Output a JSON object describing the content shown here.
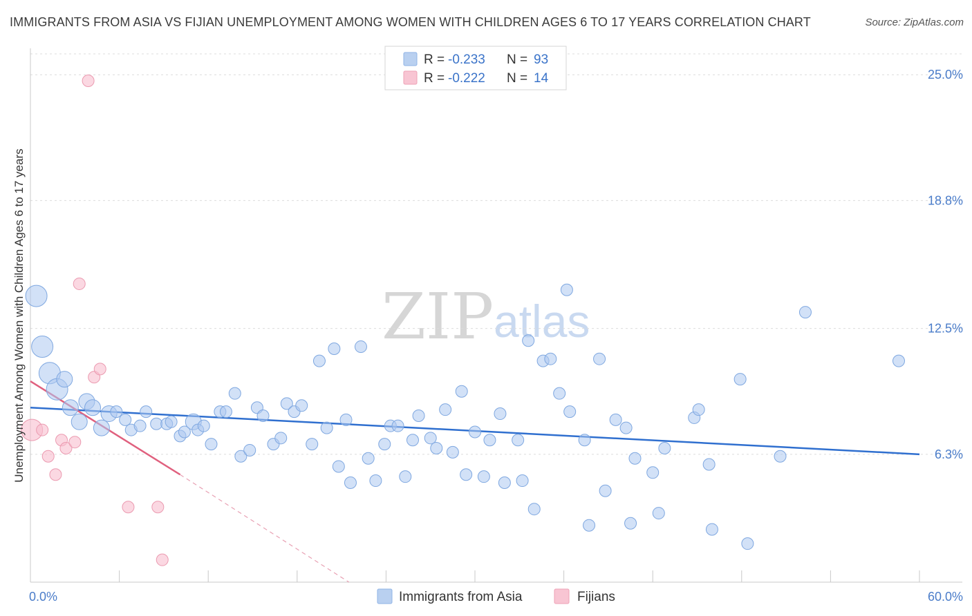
{
  "title": "IMMIGRANTS FROM ASIA VS FIJIAN UNEMPLOYMENT AMONG WOMEN WITH CHILDREN AGES 6 TO 17 YEARS CORRELATION CHART",
  "source": "Source: ZipAtlas.com",
  "watermark": {
    "zip": "ZIP",
    "atlas": "atlas"
  },
  "colors": {
    "blue": "#4a86d8",
    "blue_fill": "#b9d0f0",
    "pink": "#e0607e",
    "pink_fill": "#f8c5d3",
    "axis_text": "#4a7cc9"
  },
  "legend": {
    "rows": [
      {
        "r_label": "R =",
        "r_value": "-0.233",
        "n_label": "N =",
        "n_value": "93"
      },
      {
        "r_label": "R =",
        "r_value": "-0.222",
        "n_label": "N =",
        "n_value": "14"
      }
    ]
  },
  "chart_data": {
    "type": "scatter",
    "title": "IMMIGRANTS FROM ASIA VS FIJIAN UNEMPLOYMENT AMONG WOMEN WITH CHILDREN AGES 6 TO 17 YEARS CORRELATION CHART",
    "xlabel": "",
    "ylabel": "Unemployment Among Women with Children Ages 6 to 17 years",
    "xlim": [
      0,
      60
    ],
    "ylim": [
      0,
      26.3
    ],
    "x_tick_labels": [
      {
        "value": 0,
        "label": "0.0%"
      },
      {
        "value": 60,
        "label": "60.0%"
      }
    ],
    "y_ticks": [
      {
        "value": 6.3,
        "label": "6.3%"
      },
      {
        "value": 12.5,
        "label": "12.5%"
      },
      {
        "value": 18.8,
        "label": "18.8%"
      },
      {
        "value": 25.0,
        "label": "25.0%"
      }
    ],
    "grid": true,
    "legend_position": "top-center",
    "series": [
      {
        "name": "Immigrants from Asia",
        "color": "#4a86d8",
        "r": -0.233,
        "n": 93,
        "trend": {
          "x0": 0,
          "y0": 8.6,
          "x1": 60,
          "y1": 6.3
        },
        "points": [
          {
            "x": 0.4,
            "y": 14.1,
            "s": 3
          },
          {
            "x": 0.8,
            "y": 11.6,
            "s": 3
          },
          {
            "x": 1.3,
            "y": 10.3,
            "s": 3
          },
          {
            "x": 1.8,
            "y": 9.5,
            "s": 3
          },
          {
            "x": 2.3,
            "y": 10.0,
            "s": 2
          },
          {
            "x": 2.7,
            "y": 8.6,
            "s": 2
          },
          {
            "x": 3.3,
            "y": 7.9,
            "s": 2
          },
          {
            "x": 3.8,
            "y": 8.9,
            "s": 2
          },
          {
            "x": 4.2,
            "y": 8.6,
            "s": 2
          },
          {
            "x": 4.8,
            "y": 7.6,
            "s": 2
          },
          {
            "x": 5.3,
            "y": 8.3,
            "s": 2
          },
          {
            "x": 5.8,
            "y": 8.4,
            "s": 1
          },
          {
            "x": 6.4,
            "y": 8.0,
            "s": 1
          },
          {
            "x": 6.8,
            "y": 7.5,
            "s": 1
          },
          {
            "x": 7.4,
            "y": 7.7,
            "s": 1
          },
          {
            "x": 7.8,
            "y": 8.4,
            "s": 1
          },
          {
            "x": 8.5,
            "y": 7.8,
            "s": 1
          },
          {
            "x": 9.2,
            "y": 7.8,
            "s": 1
          },
          {
            "x": 9.5,
            "y": 7.9,
            "s": 1
          },
          {
            "x": 10.1,
            "y": 7.2,
            "s": 1
          },
          {
            "x": 10.4,
            "y": 7.4,
            "s": 1
          },
          {
            "x": 11.0,
            "y": 7.9,
            "s": 2
          },
          {
            "x": 11.3,
            "y": 7.5,
            "s": 1
          },
          {
            "x": 11.7,
            "y": 7.7,
            "s": 1
          },
          {
            "x": 12.2,
            "y": 6.8,
            "s": 1
          },
          {
            "x": 12.8,
            "y": 8.4,
            "s": 1
          },
          {
            "x": 13.2,
            "y": 8.4,
            "s": 1
          },
          {
            "x": 13.8,
            "y": 9.3,
            "s": 1
          },
          {
            "x": 14.2,
            "y": 6.2,
            "s": 1
          },
          {
            "x": 14.8,
            "y": 6.5,
            "s": 1
          },
          {
            "x": 15.3,
            "y": 8.6,
            "s": 1
          },
          {
            "x": 15.7,
            "y": 8.2,
            "s": 1
          },
          {
            "x": 16.4,
            "y": 6.8,
            "s": 1
          },
          {
            "x": 16.9,
            "y": 7.1,
            "s": 1
          },
          {
            "x": 17.3,
            "y": 8.8,
            "s": 1
          },
          {
            "x": 17.8,
            "y": 8.4,
            "s": 1
          },
          {
            "x": 18.3,
            "y": 8.7,
            "s": 1
          },
          {
            "x": 19.0,
            "y": 6.8,
            "s": 1
          },
          {
            "x": 19.5,
            "y": 10.9,
            "s": 1
          },
          {
            "x": 20.0,
            "y": 7.6,
            "s": 1
          },
          {
            "x": 20.5,
            "y": 11.5,
            "s": 1
          },
          {
            "x": 20.8,
            "y": 5.7,
            "s": 1
          },
          {
            "x": 21.3,
            "y": 8.0,
            "s": 1
          },
          {
            "x": 21.6,
            "y": 4.9,
            "s": 1
          },
          {
            "x": 22.3,
            "y": 11.6,
            "s": 1
          },
          {
            "x": 22.8,
            "y": 6.1,
            "s": 1
          },
          {
            "x": 23.3,
            "y": 5.0,
            "s": 1
          },
          {
            "x": 23.9,
            "y": 6.8,
            "s": 1
          },
          {
            "x": 24.3,
            "y": 7.7,
            "s": 1
          },
          {
            "x": 24.8,
            "y": 7.7,
            "s": 1
          },
          {
            "x": 25.3,
            "y": 5.2,
            "s": 1
          },
          {
            "x": 25.8,
            "y": 7.0,
            "s": 1
          },
          {
            "x": 26.2,
            "y": 8.2,
            "s": 1
          },
          {
            "x": 27.0,
            "y": 7.1,
            "s": 1
          },
          {
            "x": 27.4,
            "y": 6.6,
            "s": 1
          },
          {
            "x": 28.0,
            "y": 8.5,
            "s": 1
          },
          {
            "x": 28.5,
            "y": 6.4,
            "s": 1
          },
          {
            "x": 29.1,
            "y": 9.4,
            "s": 1
          },
          {
            "x": 29.4,
            "y": 5.3,
            "s": 1
          },
          {
            "x": 30.0,
            "y": 7.4,
            "s": 1
          },
          {
            "x": 30.6,
            "y": 5.2,
            "s": 1
          },
          {
            "x": 31.0,
            "y": 7.0,
            "s": 1
          },
          {
            "x": 31.7,
            "y": 8.3,
            "s": 1
          },
          {
            "x": 32.0,
            "y": 4.9,
            "s": 1
          },
          {
            "x": 32.9,
            "y": 7.0,
            "s": 1
          },
          {
            "x": 33.2,
            "y": 5.0,
            "s": 1
          },
          {
            "x": 33.6,
            "y": 11.9,
            "s": 1
          },
          {
            "x": 34.0,
            "y": 3.6,
            "s": 1
          },
          {
            "x": 34.6,
            "y": 10.9,
            "s": 1
          },
          {
            "x": 35.1,
            "y": 11.0,
            "s": 1
          },
          {
            "x": 35.7,
            "y": 9.3,
            "s": 1
          },
          {
            "x": 36.2,
            "y": 14.4,
            "s": 1
          },
          {
            "x": 36.4,
            "y": 8.4,
            "s": 1
          },
          {
            "x": 37.4,
            "y": 7.0,
            "s": 1
          },
          {
            "x": 37.7,
            "y": 2.8,
            "s": 1
          },
          {
            "x": 38.4,
            "y": 11.0,
            "s": 1
          },
          {
            "x": 38.8,
            "y": 4.5,
            "s": 1
          },
          {
            "x": 39.5,
            "y": 8.0,
            "s": 1
          },
          {
            "x": 40.2,
            "y": 7.6,
            "s": 1
          },
          {
            "x": 40.5,
            "y": 2.9,
            "s": 1
          },
          {
            "x": 40.8,
            "y": 6.1,
            "s": 1
          },
          {
            "x": 42.0,
            "y": 5.4,
            "s": 1
          },
          {
            "x": 42.4,
            "y": 3.4,
            "s": 1
          },
          {
            "x": 42.8,
            "y": 6.6,
            "s": 1
          },
          {
            "x": 44.8,
            "y": 8.1,
            "s": 1
          },
          {
            "x": 45.1,
            "y": 8.5,
            "s": 1
          },
          {
            "x": 45.8,
            "y": 5.8,
            "s": 1
          },
          {
            "x": 46.0,
            "y": 2.6,
            "s": 1
          },
          {
            "x": 47.9,
            "y": 10.0,
            "s": 1
          },
          {
            "x": 48.4,
            "y": 1.9,
            "s": 1
          },
          {
            "x": 50.6,
            "y": 6.2,
            "s": 1
          },
          {
            "x": 52.3,
            "y": 13.3,
            "s": 1
          },
          {
            "x": 58.6,
            "y": 10.9,
            "s": 1
          }
        ]
      },
      {
        "name": "Fijians",
        "color": "#e0607e",
        "r": -0.222,
        "n": 14,
        "trend": {
          "x0": 0,
          "y0": 9.9,
          "x1": 10.1,
          "y1": 5.3,
          "dashed_to_x": 21.5,
          "dashed_to_y": 0.0
        },
        "points": [
          {
            "x": 0.1,
            "y": 7.5,
            "s": 3
          },
          {
            "x": 0.8,
            "y": 7.5,
            "s": 1
          },
          {
            "x": 1.2,
            "y": 6.2,
            "s": 1
          },
          {
            "x": 1.7,
            "y": 5.3,
            "s": 1
          },
          {
            "x": 2.1,
            "y": 7.0,
            "s": 1
          },
          {
            "x": 2.4,
            "y": 6.6,
            "s": 1
          },
          {
            "x": 3.0,
            "y": 6.9,
            "s": 1
          },
          {
            "x": 3.3,
            "y": 14.7,
            "s": 1
          },
          {
            "x": 3.9,
            "y": 24.7,
            "s": 1
          },
          {
            "x": 4.3,
            "y": 10.1,
            "s": 1
          },
          {
            "x": 4.7,
            "y": 10.5,
            "s": 1
          },
          {
            "x": 6.6,
            "y": 3.7,
            "s": 1
          },
          {
            "x": 8.6,
            "y": 3.7,
            "s": 1
          },
          {
            "x": 8.9,
            "y": 1.1,
            "s": 1
          }
        ]
      }
    ]
  },
  "bottom_legend": [
    {
      "label": "Immigrants from Asia"
    },
    {
      "label": "Fijians"
    }
  ]
}
